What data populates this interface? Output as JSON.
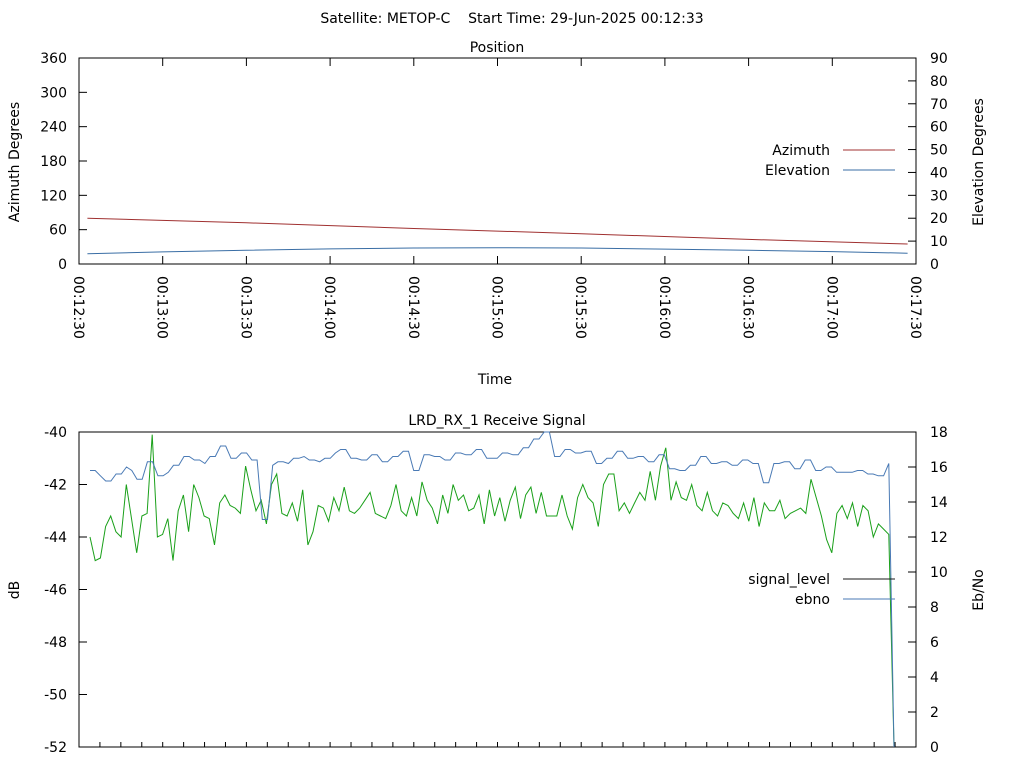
{
  "header": {
    "title": "Satellite: METOP-C    Start Time: 29-Jun-2025 00:12:33"
  },
  "colors": {
    "azimuth": "#a03030",
    "elevation": "#3a6ea5",
    "signal_level": "#1a1a1a",
    "ebno": "#4a7ab5",
    "signal_trace": "#1aa01a"
  },
  "chart_data": [
    {
      "type": "line",
      "title": "Position",
      "xlabel": "Time",
      "ylabel": "Azimuth Degrees",
      "y2label": "Elevation Degrees",
      "xlim": [
        "00:12:30",
        "00:17:30"
      ],
      "ylim": [
        0,
        360
      ],
      "y2lim": [
        0,
        90
      ],
      "x_ticks": [
        "00:12:30",
        "00:13:00",
        "00:13:30",
        "00:14:00",
        "00:14:30",
        "00:15:00",
        "00:15:30",
        "00:16:00",
        "00:16:30",
        "00:17:00",
        "00:17:30"
      ],
      "y_ticks": [
        "0",
        "60",
        "120",
        "180",
        "240",
        "300",
        "360"
      ],
      "y2_ticks": [
        "0",
        "10",
        "20",
        "30",
        "40",
        "50",
        "60",
        "70",
        "80",
        "90"
      ],
      "legend_position": "right",
      "series": [
        {
          "name": "Azimuth",
          "axis": "y",
          "x": [
            "00:12:33",
            "00:13:30",
            "00:14:30",
            "00:15:30",
            "00:16:30",
            "00:17:27"
          ],
          "values": [
            80,
            72,
            62,
            53,
            43,
            35
          ]
        },
        {
          "name": "Elevation",
          "axis": "y2",
          "x": [
            "00:12:33",
            "00:13:00",
            "00:13:30",
            "00:14:00",
            "00:14:30",
            "00:15:00",
            "00:15:30",
            "00:16:00",
            "00:16:30",
            "00:17:00",
            "00:17:27"
          ],
          "values": [
            4.5,
            5.3,
            6.0,
            6.6,
            7.0,
            7.1,
            7.0,
            6.5,
            6.0,
            5.4,
            4.7
          ]
        }
      ]
    },
    {
      "type": "line",
      "title": "LRD_RX_1 Receive Signal",
      "ylabel": "dB",
      "y2label": "Eb/No",
      "ylim": [
        -52,
        -40
      ],
      "y2lim": [
        0,
        18
      ],
      "y_ticks": [
        "-40",
        "-42",
        "-44",
        "-46",
        "-48",
        "-50",
        "-52"
      ],
      "y2_ticks": [
        "0",
        "2",
        "4",
        "6",
        "8",
        "10",
        "12",
        "14",
        "16",
        "18"
      ],
      "legend_position": "right",
      "series": [
        {
          "name": "signal_level",
          "axis": "y",
          "values": [
            -44.0,
            -44.9,
            -44.8,
            -43.6,
            -43.2,
            -43.8,
            -44.0,
            -42.0,
            -43.3,
            -44.6,
            -43.2,
            -43.1,
            -40.1,
            -44.0,
            -43.9,
            -43.3,
            -44.9,
            -43.0,
            -42.4,
            -43.8,
            -42.0,
            -42.5,
            -43.2,
            -43.3,
            -44.3,
            -42.7,
            -42.4,
            -42.8,
            -42.9,
            -43.1,
            -41.3,
            -42.2,
            -43.0,
            -42.6,
            -43.5,
            -42.0,
            -41.6,
            -43.1,
            -43.2,
            -42.7,
            -43.4,
            -42.2,
            -44.3,
            -43.8,
            -42.8,
            -42.9,
            -43.4,
            -42.5,
            -43.0,
            -42.1,
            -43.0,
            -43.1,
            -42.9,
            -42.6,
            -42.3,
            -43.1,
            -43.2,
            -43.3,
            -42.8,
            -42.0,
            -43.0,
            -43.2,
            -42.5,
            -43.2,
            -41.9,
            -42.6,
            -42.9,
            -43.5,
            -42.4,
            -43.1,
            -42.0,
            -42.6,
            -42.4,
            -43.0,
            -42.9,
            -42.4,
            -43.5,
            -42.2,
            -43.2,
            -42.5,
            -43.4,
            -42.6,
            -42.1,
            -43.3,
            -42.4,
            -42.1,
            -43.1,
            -42.3,
            -43.2,
            -43.2,
            -43.2,
            -42.4,
            -43.2,
            -43.7,
            -42.5,
            -42.0,
            -42.5,
            -42.7,
            -43.6,
            -42.0,
            -41.6,
            -41.6,
            -43.0,
            -42.7,
            -43.1,
            -42.7,
            -42.3,
            -42.6,
            -41.5,
            -42.6,
            -41.3,
            -40.6,
            -42.6,
            -41.9,
            -42.5,
            -42.6,
            -42.0,
            -42.8,
            -43.0,
            -42.3,
            -43.0,
            -43.2,
            -42.7,
            -42.8,
            -43.1,
            -43.3,
            -42.7,
            -43.4,
            -42.5,
            -43.6,
            -42.7,
            -43.0,
            -43.0,
            -42.6,
            -43.3,
            -43.1,
            -43.0,
            -42.9,
            -43.1,
            -41.8,
            -42.5,
            -43.2,
            -44.1,
            -44.6,
            -43.1,
            -42.8,
            -43.3,
            -42.7,
            -43.6,
            -42.8,
            -43.0,
            -44.0,
            -43.5,
            -43.7,
            -43.9,
            -52.0
          ]
        },
        {
          "name": "ebno",
          "axis": "y2",
          "values": [
            15.8,
            15.8,
            15.5,
            15.2,
            15.2,
            15.6,
            15.6,
            16.0,
            15.8,
            15.3,
            15.3,
            16.3,
            16.3,
            15.5,
            15.5,
            15.7,
            16.1,
            16.1,
            16.6,
            16.6,
            16.4,
            16.4,
            16.2,
            16.6,
            16.6,
            17.2,
            17.2,
            16.5,
            16.5,
            16.8,
            16.8,
            16.4,
            16.4,
            13.0,
            13.0,
            16.1,
            16.3,
            16.3,
            16.2,
            16.5,
            16.5,
            16.6,
            16.4,
            16.4,
            16.3,
            16.5,
            16.5,
            16.8,
            17.0,
            17.0,
            16.5,
            16.5,
            16.4,
            16.4,
            16.7,
            16.7,
            16.3,
            16.3,
            16.6,
            16.6,
            16.9,
            16.9,
            15.8,
            15.8,
            16.7,
            16.7,
            16.6,
            16.6,
            16.4,
            16.4,
            16.8,
            16.8,
            16.7,
            16.7,
            17.0,
            17.0,
            16.5,
            16.5,
            16.5,
            16.8,
            16.8,
            16.7,
            16.7,
            17.1,
            17.1,
            17.6,
            17.6,
            18.0,
            18.0,
            16.6,
            16.6,
            17.0,
            17.0,
            16.8,
            16.8,
            16.9,
            16.9,
            16.2,
            16.2,
            16.5,
            16.5,
            16.9,
            16.9,
            16.5,
            16.5,
            16.6,
            16.6,
            16.3,
            16.3,
            16.7,
            16.7,
            15.9,
            15.9,
            15.8,
            15.8,
            16.1,
            16.1,
            16.6,
            16.6,
            16.2,
            16.2,
            16.3,
            16.3,
            16.1,
            16.1,
            16.4,
            16.4,
            16.2,
            16.2,
            15.1,
            15.1,
            16.2,
            16.2,
            16.3,
            16.3,
            15.9,
            15.9,
            16.4,
            16.4,
            15.8,
            15.8,
            16.0,
            16.0,
            15.7,
            15.7,
            15.7,
            15.7,
            15.8,
            15.8,
            15.6,
            15.6,
            15.5,
            15.5,
            16.2,
            0.0
          ]
        }
      ]
    }
  ]
}
